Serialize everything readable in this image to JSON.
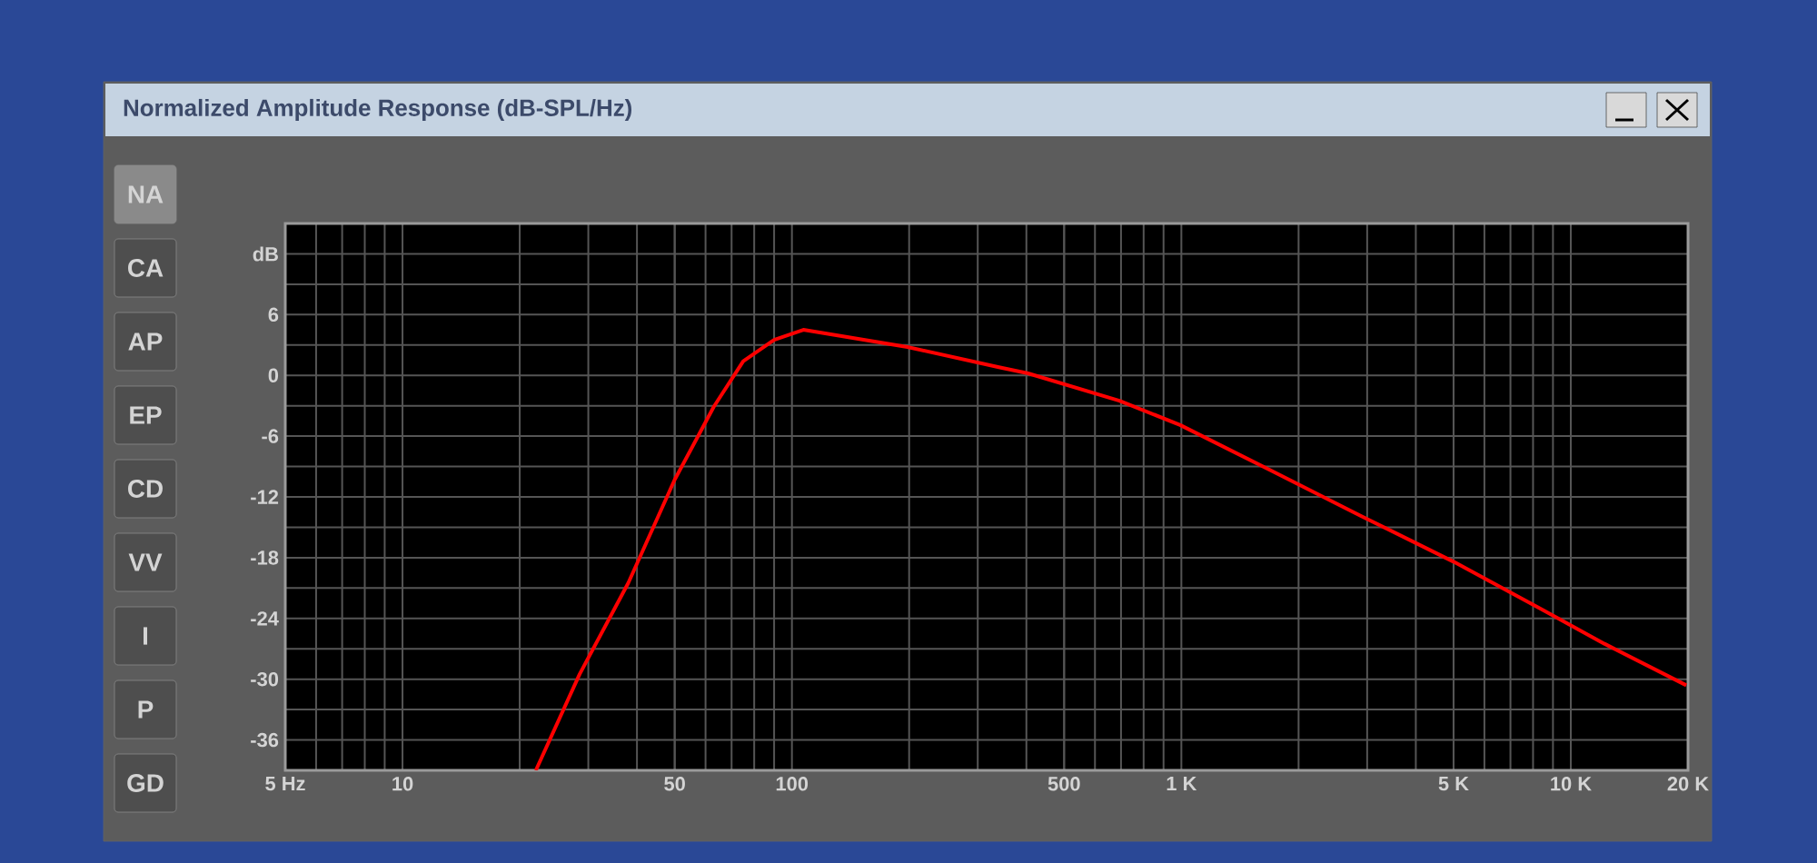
{
  "chart_data": {
    "type": "line",
    "title": "Normalized Amplitude Response (dB-SPL/Hz)",
    "x": [
      22,
      28.5,
      38,
      50,
      63,
      75,
      90,
      107,
      198,
      340,
      404,
      693,
      993,
      1700,
      2900,
      5000,
      8500,
      12200,
      19800
    ],
    "series": [
      {
        "color": "#ff0000",
        "values": [
          -39,
          -29.5,
          -20.5,
          -10.3,
          -3.1,
          1.4,
          3.5,
          4.5,
          2.8,
          0.8,
          0.2,
          -2.5,
          -4.9,
          -9.4,
          -13.9,
          -18.4,
          -23.2,
          -26.5,
          -30.6
        ]
      }
    ],
    "log": "x",
    "xlim": [
      5,
      20000
    ],
    "ylim": [
      -39,
      15
    ],
    "xticks": [
      {
        "value": 5,
        "label": "5 Hz"
      },
      10,
      50,
      100,
      500,
      {
        "value": 1000,
        "label": "1 K"
      },
      {
        "value": 5000,
        "label": "5 K"
      },
      {
        "value": 10000,
        "label": "10 K"
      },
      {
        "value": 20000,
        "label": "20 K"
      }
    ],
    "yticks": [
      -36,
      {
        "value": -33,
        "label": null
      },
      -30,
      {
        "value": -27,
        "label": null
      },
      -24,
      {
        "value": -21,
        "label": null
      },
      -18,
      {
        "value": -15,
        "label": null
      },
      -12,
      {
        "value": -9,
        "label": null
      },
      -6,
      {
        "value": -3,
        "label": null
      },
      0,
      {
        "value": 3,
        "label": null
      },
      6,
      {
        "value": 9,
        "label": null
      },
      {
        "value": 12,
        "label": "dB"
      }
    ],
    "grid": true,
    "marker": "none",
    "line_style": "solid",
    "annotations": [
      "NA",
      "CA",
      "AP",
      "EP",
      "CD",
      "VV",
      "I",
      "P",
      "GD"
    ]
  }
}
